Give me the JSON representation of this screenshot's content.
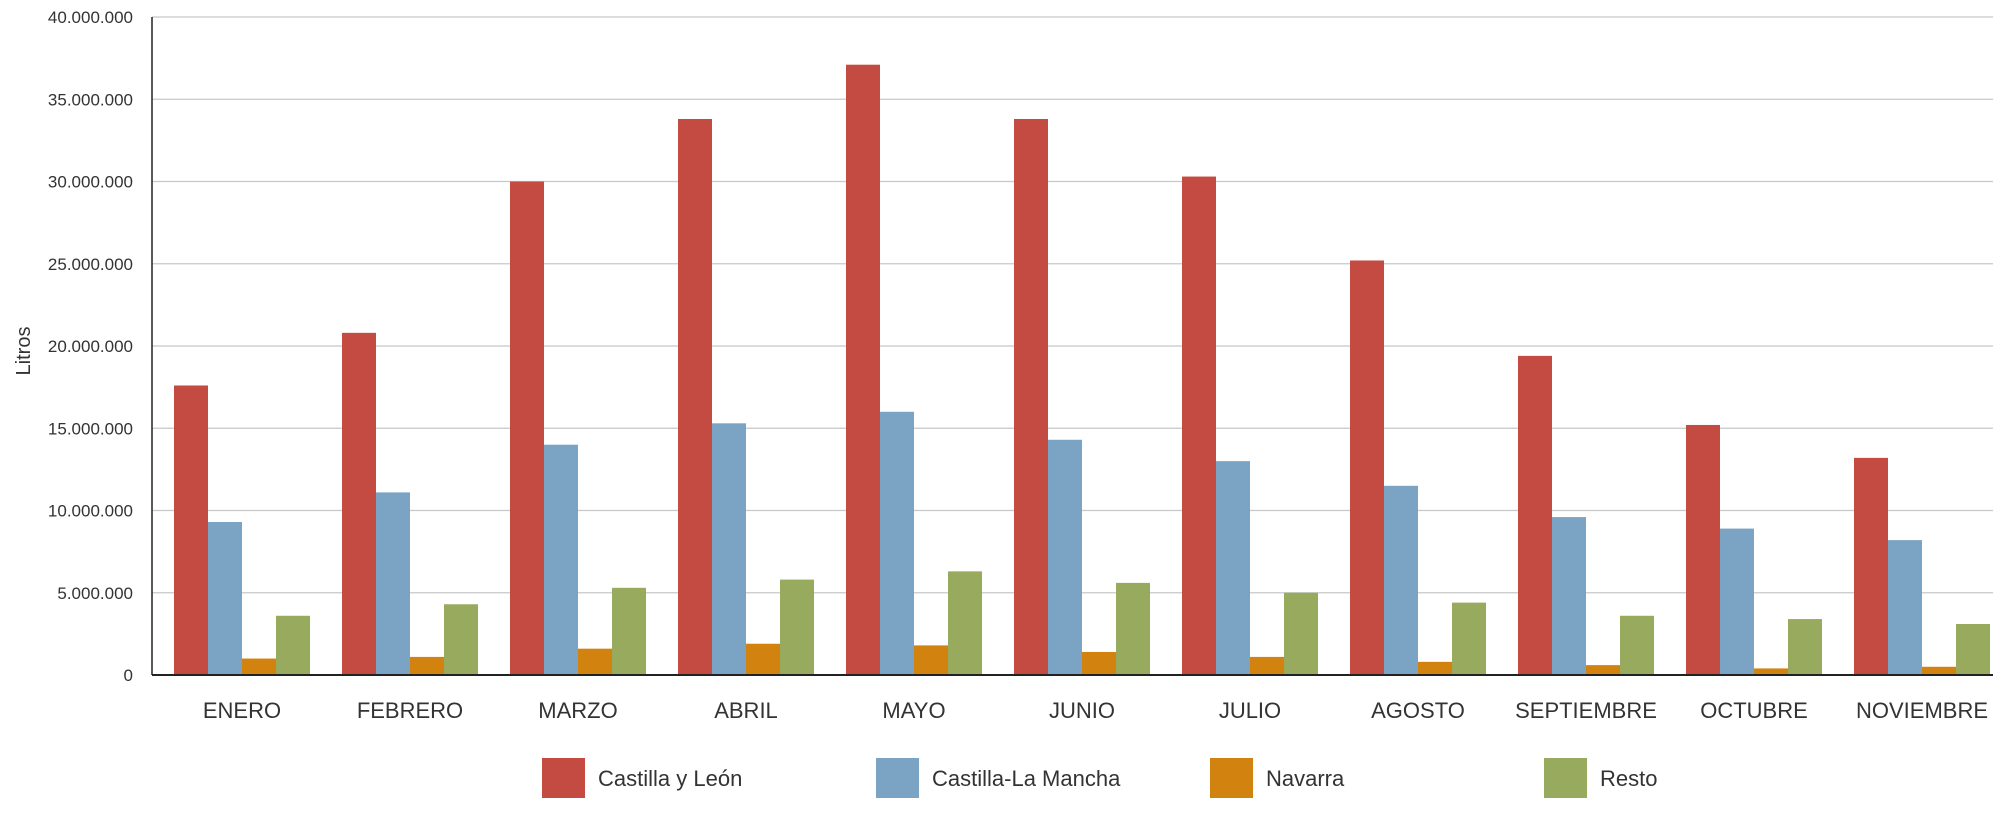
{
  "chart_data": {
    "type": "bar",
    "title": "",
    "xlabel": "",
    "ylabel": "Litros",
    "ylim": [
      0,
      40000000
    ],
    "ytick_step": 5000000,
    "grid": true,
    "legend_position": "bottom",
    "categories": [
      "ENERO",
      "FEBRERO",
      "MARZO",
      "ABRIL",
      "MAYO",
      "JUNIO",
      "JULIO",
      "AGOSTO",
      "SEPTIEMBRE",
      "OCTUBRE",
      "NOVIEMBRE"
    ],
    "series": [
      {
        "name": "Castilla y León",
        "color": "#c44b41",
        "values": [
          17600000,
          20800000,
          30000000,
          33800000,
          37100000,
          33800000,
          30300000,
          25200000,
          19400000,
          15200000,
          13200000
        ]
      },
      {
        "name": "Castilla-La Mancha",
        "color": "#7ba3c3",
        "values": [
          9300000,
          11100000,
          14000000,
          15300000,
          16000000,
          14300000,
          13000000,
          11500000,
          9600000,
          8900000,
          8200000
        ]
      },
      {
        "name": "Navarra",
        "color": "#d2820f",
        "values": [
          1000000,
          1100000,
          1600000,
          1900000,
          1800000,
          1400000,
          1100000,
          800000,
          600000,
          400000,
          500000
        ]
      },
      {
        "name": "Resto",
        "color": "#97aa5d",
        "values": [
          3600000,
          4300000,
          5300000,
          5800000,
          6300000,
          5600000,
          5000000,
          4400000,
          3600000,
          3400000,
          3100000
        ]
      }
    ]
  }
}
